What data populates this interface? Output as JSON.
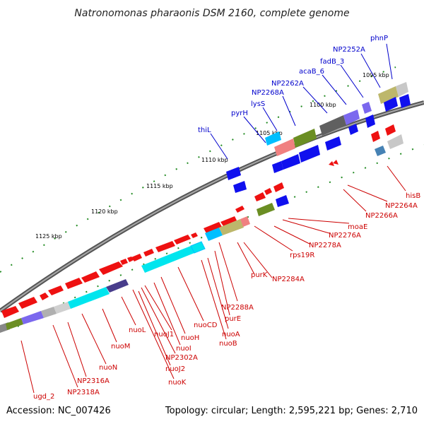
{
  "title": "Natronomonas pharaonis DSM 2160, complete genome",
  "footer": {
    "accession": "Accession: NC_007426",
    "summary": "Topology: circular; Length: 2,595,221 bp; Genes: 2,710"
  },
  "scale_labels": [
    "1095 kbp",
    "1100 kbp",
    "1105 kbp",
    "1110 kbp",
    "1115 kbp",
    "1120 kbp",
    "1125 kbp"
  ],
  "colors": {
    "forward_label": "#0000cc",
    "reverse_label": "#cc0000",
    "backbone": "#808080",
    "tick": "#228b22"
  },
  "top_labels": [
    "phnP",
    "NP2252A",
    "fadB_3",
    "acaB_6",
    "NP2262A",
    "NP2268A",
    "lysS",
    "pyrH",
    "thiL"
  ],
  "bottom_labels": [
    "hisB",
    "NP2264A",
    "NP2266A",
    "moaE",
    "NP2276A",
    "NP2278A",
    "rps19R",
    "purK",
    "NP2284A",
    "NP2288A",
    "purE",
    "nuoA",
    "nuoB",
    "nuoCD",
    "nuoH",
    "nuoI",
    "nuoJ1",
    "NP2302A",
    "nuoJ2",
    "nuoK",
    "nuoL",
    "nuoM",
    "nuoN",
    "NP2316A",
    "NP2318A",
    "ugd_2"
  ]
}
